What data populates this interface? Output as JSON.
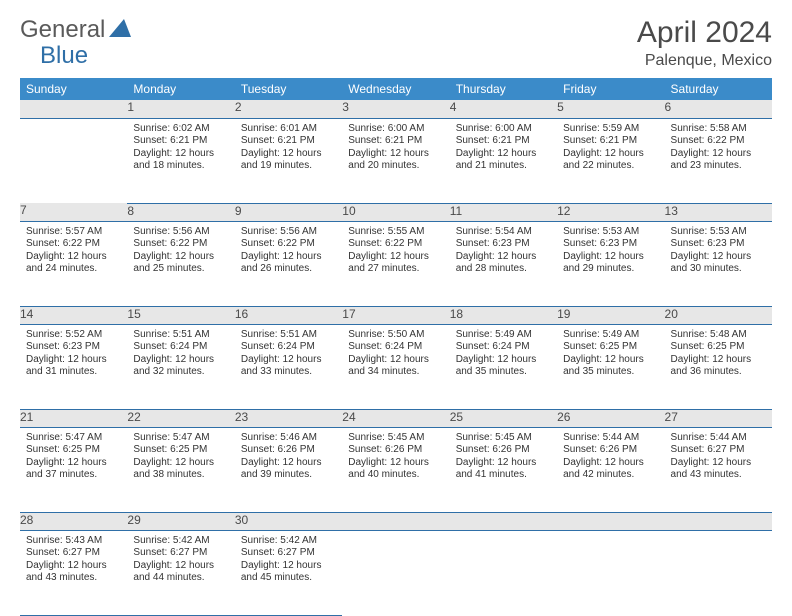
{
  "logo": {
    "general": "General",
    "blue": "Blue"
  },
  "title": "April 2024",
  "location": "Palenque, Mexico",
  "colors": {
    "header_bg": "#3b8bc9",
    "header_text": "#ffffff",
    "daynum_bg": "#e7e7e7",
    "border": "#2f6fa7",
    "text": "#333333",
    "title_text": "#4a4a4a",
    "logo_gray": "#5a5a5a",
    "logo_blue": "#2f6fa7"
  },
  "weekdays": [
    "Sunday",
    "Monday",
    "Tuesday",
    "Wednesday",
    "Thursday",
    "Friday",
    "Saturday"
  ],
  "weeks": [
    {
      "nums": [
        "",
        "1",
        "2",
        "3",
        "4",
        "5",
        "6"
      ],
      "cells": [
        null,
        {
          "sunrise": "Sunrise: 6:02 AM",
          "sunset": "Sunset: 6:21 PM",
          "day1": "Daylight: 12 hours",
          "day2": "and 18 minutes."
        },
        {
          "sunrise": "Sunrise: 6:01 AM",
          "sunset": "Sunset: 6:21 PM",
          "day1": "Daylight: 12 hours",
          "day2": "and 19 minutes."
        },
        {
          "sunrise": "Sunrise: 6:00 AM",
          "sunset": "Sunset: 6:21 PM",
          "day1": "Daylight: 12 hours",
          "day2": "and 20 minutes."
        },
        {
          "sunrise": "Sunrise: 6:00 AM",
          "sunset": "Sunset: 6:21 PM",
          "day1": "Daylight: 12 hours",
          "day2": "and 21 minutes."
        },
        {
          "sunrise": "Sunrise: 5:59 AM",
          "sunset": "Sunset: 6:21 PM",
          "day1": "Daylight: 12 hours",
          "day2": "and 22 minutes."
        },
        {
          "sunrise": "Sunrise: 5:58 AM",
          "sunset": "Sunset: 6:22 PM",
          "day1": "Daylight: 12 hours",
          "day2": "and 23 minutes."
        }
      ]
    },
    {
      "nums": [
        "7",
        "8",
        "9",
        "10",
        "11",
        "12",
        "13"
      ],
      "cells": [
        {
          "sunrise": "Sunrise: 5:57 AM",
          "sunset": "Sunset: 6:22 PM",
          "day1": "Daylight: 12 hours",
          "day2": "and 24 minutes."
        },
        {
          "sunrise": "Sunrise: 5:56 AM",
          "sunset": "Sunset: 6:22 PM",
          "day1": "Daylight: 12 hours",
          "day2": "and 25 minutes."
        },
        {
          "sunrise": "Sunrise: 5:56 AM",
          "sunset": "Sunset: 6:22 PM",
          "day1": "Daylight: 12 hours",
          "day2": "and 26 minutes."
        },
        {
          "sunrise": "Sunrise: 5:55 AM",
          "sunset": "Sunset: 6:22 PM",
          "day1": "Daylight: 12 hours",
          "day2": "and 27 minutes."
        },
        {
          "sunrise": "Sunrise: 5:54 AM",
          "sunset": "Sunset: 6:23 PM",
          "day1": "Daylight: 12 hours",
          "day2": "and 28 minutes."
        },
        {
          "sunrise": "Sunrise: 5:53 AM",
          "sunset": "Sunset: 6:23 PM",
          "day1": "Daylight: 12 hours",
          "day2": "and 29 minutes."
        },
        {
          "sunrise": "Sunrise: 5:53 AM",
          "sunset": "Sunset: 6:23 PM",
          "day1": "Daylight: 12 hours",
          "day2": "and 30 minutes."
        }
      ]
    },
    {
      "nums": [
        "14",
        "15",
        "16",
        "17",
        "18",
        "19",
        "20"
      ],
      "cells": [
        {
          "sunrise": "Sunrise: 5:52 AM",
          "sunset": "Sunset: 6:23 PM",
          "day1": "Daylight: 12 hours",
          "day2": "and 31 minutes."
        },
        {
          "sunrise": "Sunrise: 5:51 AM",
          "sunset": "Sunset: 6:24 PM",
          "day1": "Daylight: 12 hours",
          "day2": "and 32 minutes."
        },
        {
          "sunrise": "Sunrise: 5:51 AM",
          "sunset": "Sunset: 6:24 PM",
          "day1": "Daylight: 12 hours",
          "day2": "and 33 minutes."
        },
        {
          "sunrise": "Sunrise: 5:50 AM",
          "sunset": "Sunset: 6:24 PM",
          "day1": "Daylight: 12 hours",
          "day2": "and 34 minutes."
        },
        {
          "sunrise": "Sunrise: 5:49 AM",
          "sunset": "Sunset: 6:24 PM",
          "day1": "Daylight: 12 hours",
          "day2": "and 35 minutes."
        },
        {
          "sunrise": "Sunrise: 5:49 AM",
          "sunset": "Sunset: 6:25 PM",
          "day1": "Daylight: 12 hours",
          "day2": "and 35 minutes."
        },
        {
          "sunrise": "Sunrise: 5:48 AM",
          "sunset": "Sunset: 6:25 PM",
          "day1": "Daylight: 12 hours",
          "day2": "and 36 minutes."
        }
      ]
    },
    {
      "nums": [
        "21",
        "22",
        "23",
        "24",
        "25",
        "26",
        "27"
      ],
      "cells": [
        {
          "sunrise": "Sunrise: 5:47 AM",
          "sunset": "Sunset: 6:25 PM",
          "day1": "Daylight: 12 hours",
          "day2": "and 37 minutes."
        },
        {
          "sunrise": "Sunrise: 5:47 AM",
          "sunset": "Sunset: 6:25 PM",
          "day1": "Daylight: 12 hours",
          "day2": "and 38 minutes."
        },
        {
          "sunrise": "Sunrise: 5:46 AM",
          "sunset": "Sunset: 6:26 PM",
          "day1": "Daylight: 12 hours",
          "day2": "and 39 minutes."
        },
        {
          "sunrise": "Sunrise: 5:45 AM",
          "sunset": "Sunset: 6:26 PM",
          "day1": "Daylight: 12 hours",
          "day2": "and 40 minutes."
        },
        {
          "sunrise": "Sunrise: 5:45 AM",
          "sunset": "Sunset: 6:26 PM",
          "day1": "Daylight: 12 hours",
          "day2": "and 41 minutes."
        },
        {
          "sunrise": "Sunrise: 5:44 AM",
          "sunset": "Sunset: 6:26 PM",
          "day1": "Daylight: 12 hours",
          "day2": "and 42 minutes."
        },
        {
          "sunrise": "Sunrise: 5:44 AM",
          "sunset": "Sunset: 6:27 PM",
          "day1": "Daylight: 12 hours",
          "day2": "and 43 minutes."
        }
      ]
    },
    {
      "nums": [
        "28",
        "29",
        "30",
        "",
        "",
        "",
        ""
      ],
      "cells": [
        {
          "sunrise": "Sunrise: 5:43 AM",
          "sunset": "Sunset: 6:27 PM",
          "day1": "Daylight: 12 hours",
          "day2": "and 43 minutes."
        },
        {
          "sunrise": "Sunrise: 5:42 AM",
          "sunset": "Sunset: 6:27 PM",
          "day1": "Daylight: 12 hours",
          "day2": "and 44 minutes."
        },
        {
          "sunrise": "Sunrise: 5:42 AM",
          "sunset": "Sunset: 6:27 PM",
          "day1": "Daylight: 12 hours",
          "day2": "and 45 minutes."
        },
        null,
        null,
        null,
        null
      ]
    }
  ]
}
